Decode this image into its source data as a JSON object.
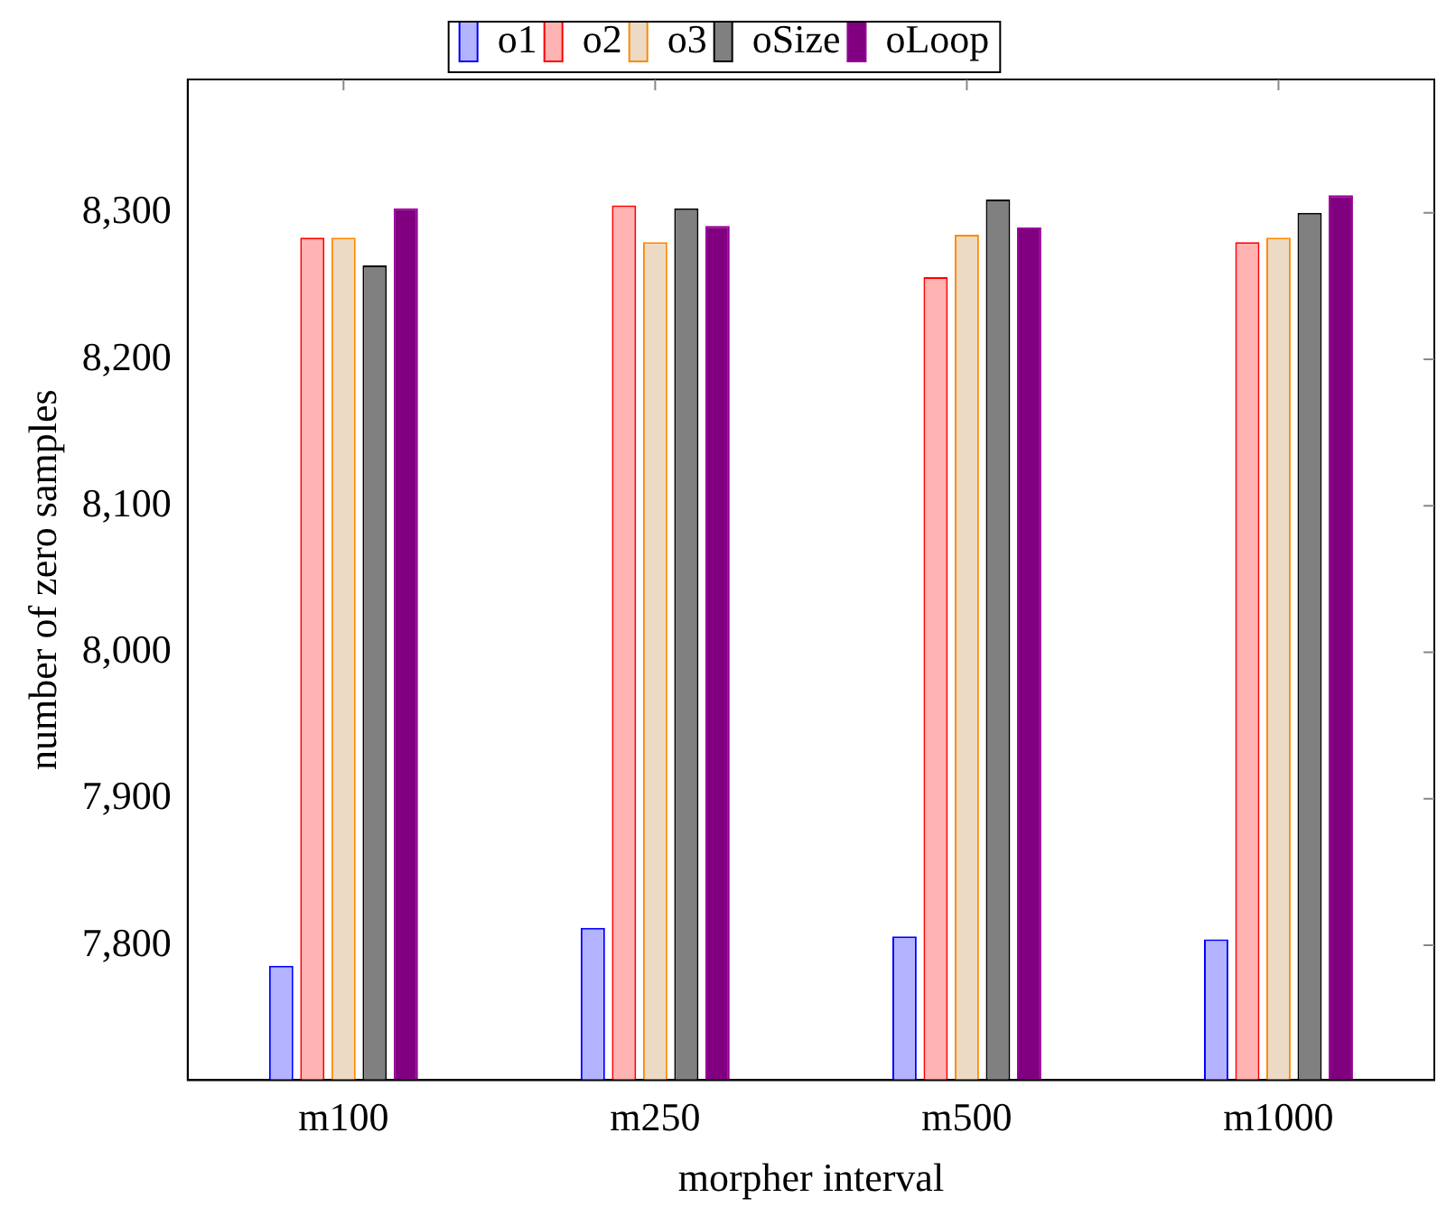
{
  "chart_data": {
    "type": "bar",
    "xlabel": "morpher interval",
    "ylabel": "number of zero samples",
    "categories": [
      "m100",
      "m250",
      "m500",
      "m1000"
    ],
    "series": [
      {
        "name": "o1",
        "color": "#b3b3ff",
        "values": [
          7786,
          7812,
          7806,
          7804
        ]
      },
      {
        "name": "o2",
        "color": "#ffb3b3",
        "values": [
          8283,
          8305,
          8256,
          8280
        ]
      },
      {
        "name": "o3",
        "color": "#ecdac5",
        "values": [
          8283,
          8280,
          8285,
          8283
        ]
      },
      {
        "name": "oSize",
        "color": "#808080",
        "values": [
          8264,
          8303,
          8309,
          8300
        ]
      },
      {
        "name": "oLoop",
        "color": "#800080",
        "values": [
          8303,
          8291,
          8290,
          8312
        ]
      }
    ],
    "ylim": [
      7708,
      8391
    ],
    "yticks": [
      {
        "value": 7800,
        "label": "7,800"
      },
      {
        "value": 7900,
        "label": "7,900"
      },
      {
        "value": 8000,
        "label": "8,000"
      },
      {
        "value": 8100,
        "label": "8,100"
      },
      {
        "value": 8200,
        "label": "8,200"
      },
      {
        "value": 8300,
        "label": "8,300"
      }
    ],
    "grid": false,
    "legend": "top"
  }
}
